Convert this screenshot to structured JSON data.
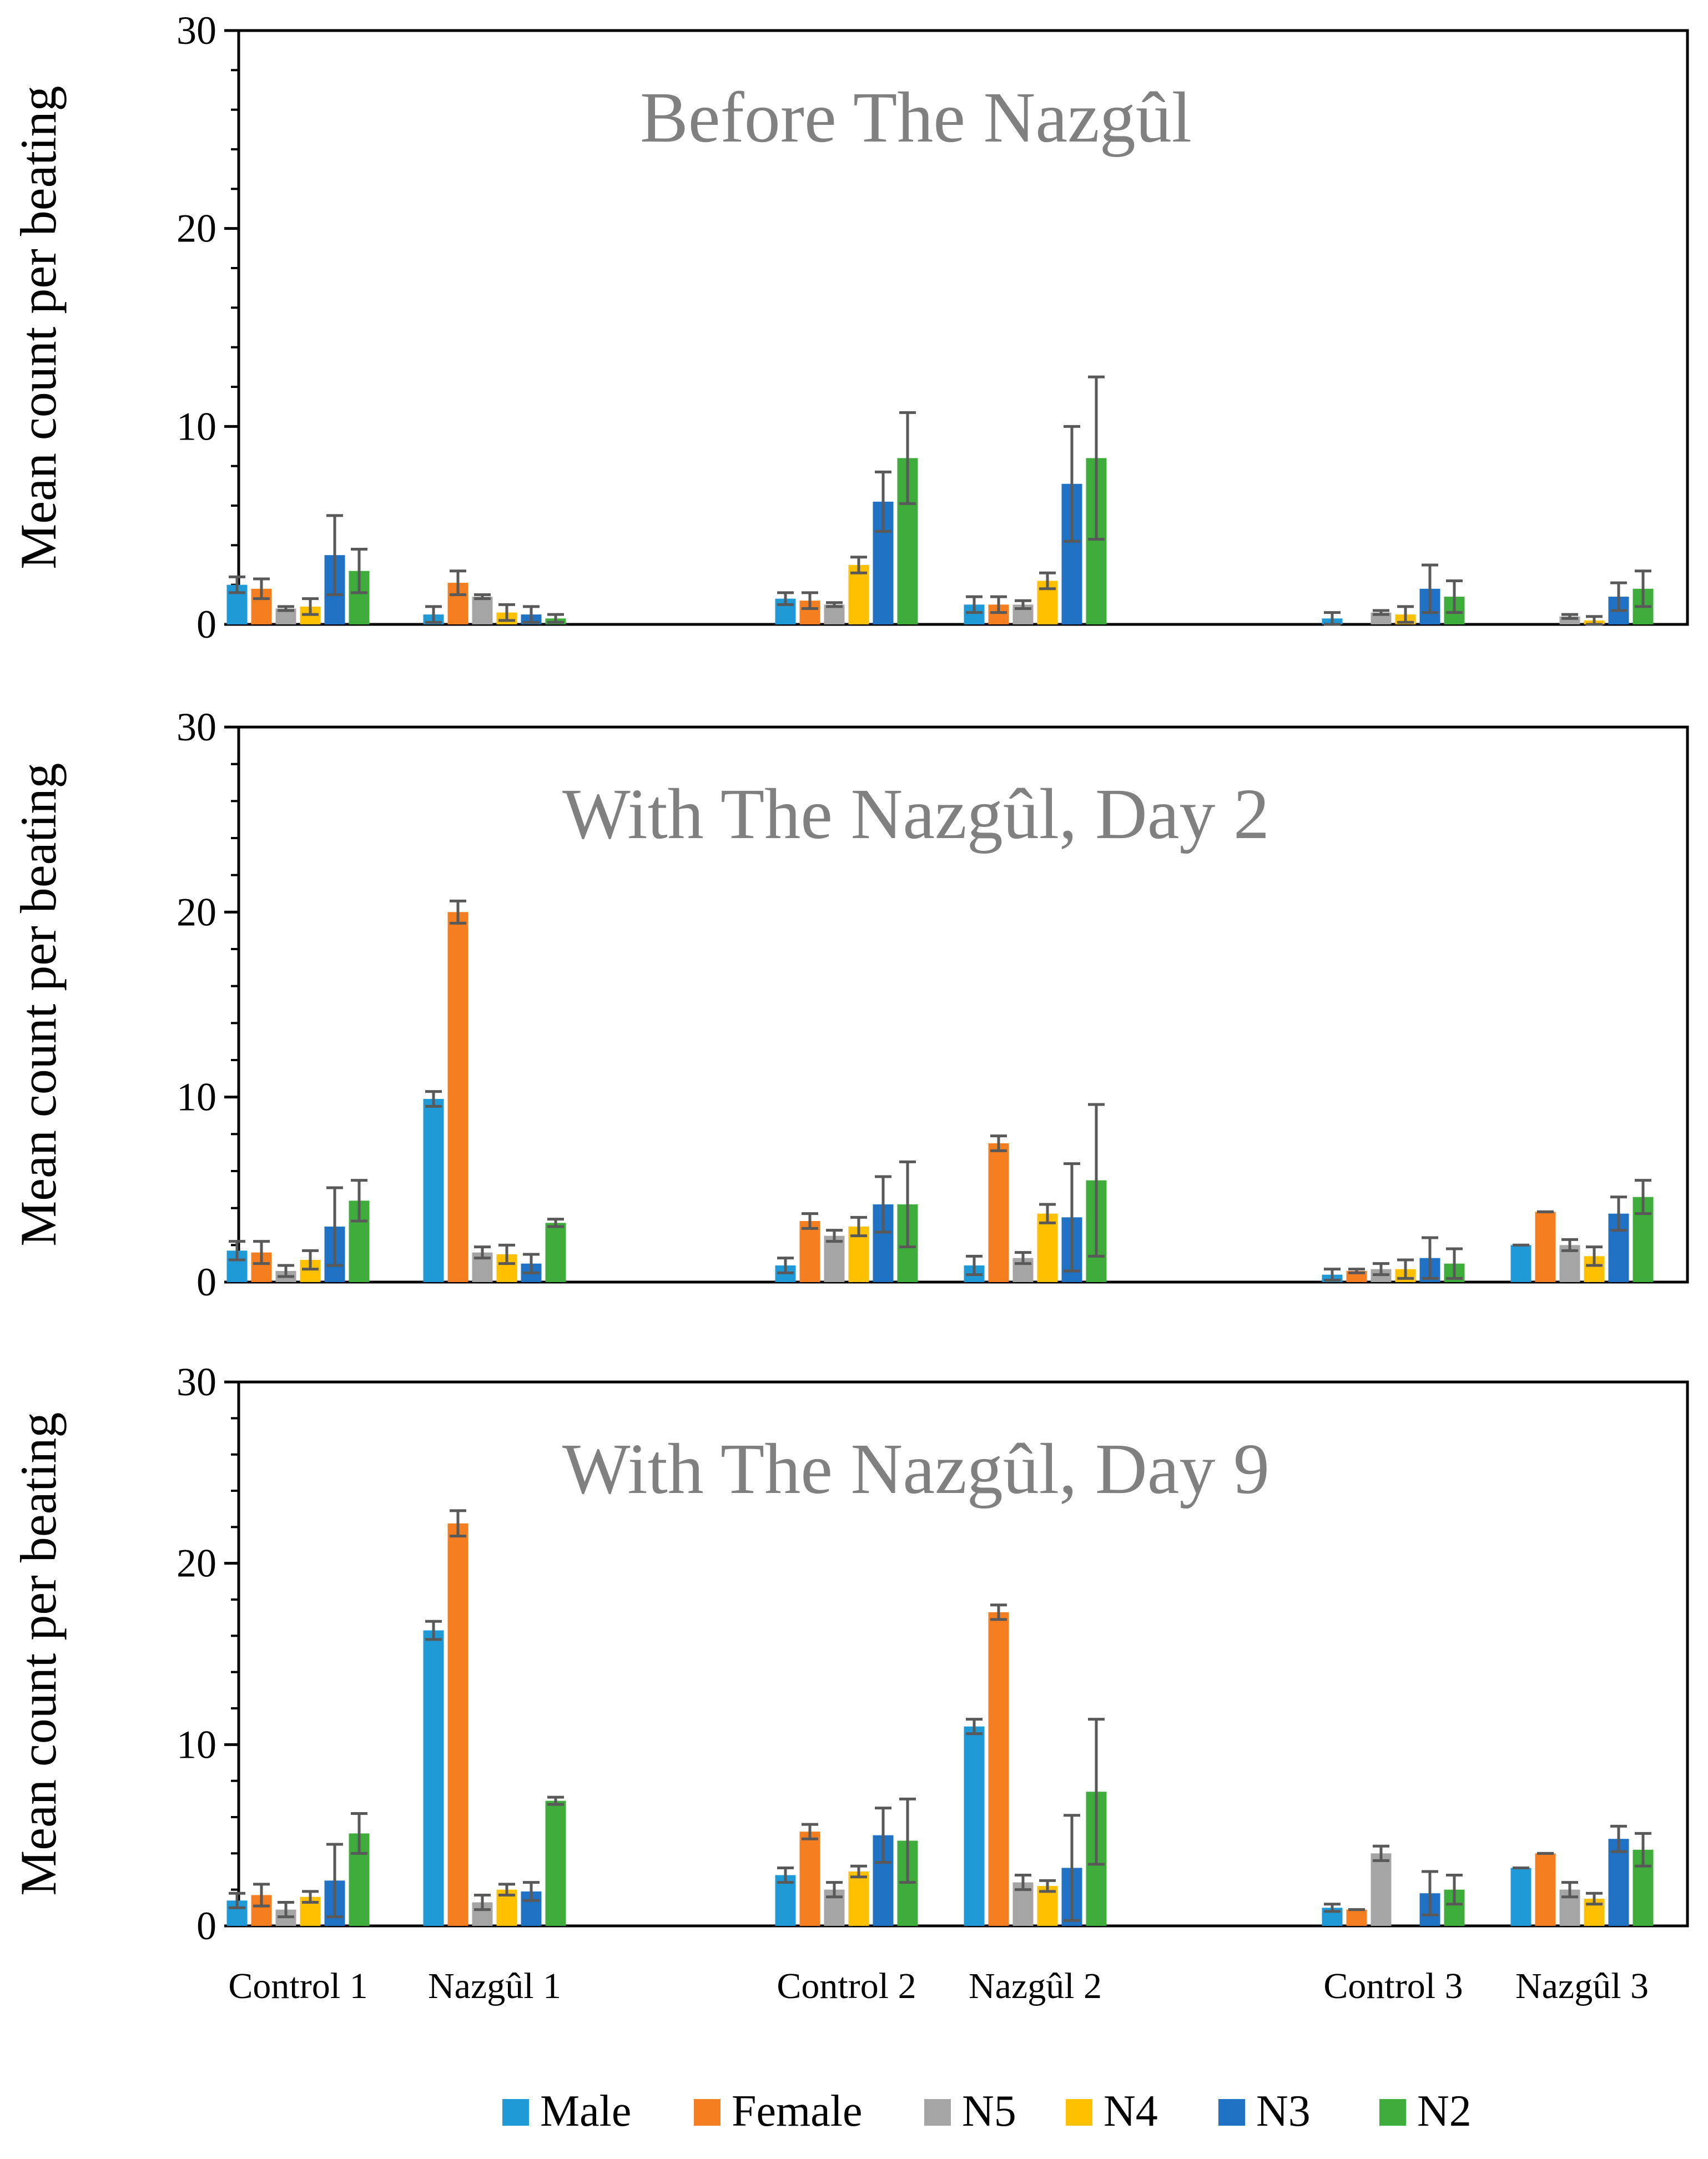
{
  "categories": [
    "Control 1",
    "Nazgûl 1",
    "Control 2",
    "Nazgûl 2",
    "Control 3",
    "Nazgûl 3"
  ],
  "legend": [
    {
      "name": "Male",
      "color": "#1f9ad6"
    },
    {
      "name": "Female",
      "color": "#f57f20"
    },
    {
      "name": "N5",
      "color": "#a5a5a5"
    },
    {
      "name": "N4",
      "color": "#ffc000"
    },
    {
      "name": "N3",
      "color": "#1f72c4"
    },
    {
      "name": "N2",
      "color": "#3fad3b"
    }
  ],
  "chart_data": [
    {
      "type": "bar",
      "title": "Before The Nazgûl",
      "ylabel": "Mean count per  beating",
      "ylim": [
        0,
        30
      ],
      "yticks": [
        0,
        10,
        20,
        30
      ],
      "categories": [
        "Control 1",
        "Nazgûl 1",
        "Control 2",
        "Nazgûl 2",
        "Control 3",
        "Nazgûl 3"
      ],
      "series": [
        {
          "name": "Male",
          "values": [
            2.0,
            0.5,
            1.3,
            1.0,
            0.3,
            0.0
          ],
          "errors": [
            0.4,
            0.4,
            0.3,
            0.4,
            0.3,
            0.0
          ]
        },
        {
          "name": "Female",
          "values": [
            1.8,
            2.1,
            1.2,
            1.0,
            0.0,
            0.0
          ],
          "errors": [
            0.5,
            0.6,
            0.4,
            0.4,
            0.0,
            0.0
          ]
        },
        {
          "name": "N5",
          "values": [
            0.8,
            1.4,
            1.0,
            1.0,
            0.6,
            0.4
          ],
          "errors": [
            0.1,
            0.1,
            0.1,
            0.2,
            0.1,
            0.1
          ]
        },
        {
          "name": "N4",
          "values": [
            0.9,
            0.6,
            3.0,
            2.2,
            0.5,
            0.2
          ],
          "errors": [
            0.4,
            0.4,
            0.4,
            0.4,
            0.4,
            0.2
          ]
        },
        {
          "name": "N3",
          "values": [
            3.5,
            0.5,
            6.2,
            7.1,
            1.8,
            1.4
          ],
          "errors": [
            2.0,
            0.4,
            1.5,
            2.9,
            1.2,
            0.7
          ]
        },
        {
          "name": "N2",
          "values": [
            2.7,
            0.3,
            8.4,
            8.4,
            1.4,
            1.8
          ],
          "errors": [
            1.1,
            0.2,
            2.3,
            4.1,
            0.8,
            0.9
          ]
        }
      ]
    },
    {
      "type": "bar",
      "title": "With The Nazgûl, Day 2",
      "ylabel": "Mean count per  beating",
      "ylim": [
        0,
        30
      ],
      "yticks": [
        0,
        10,
        20,
        30
      ],
      "categories": [
        "Control 1",
        "Nazgûl 1",
        "Control 2",
        "Nazgûl 2",
        "Control 3",
        "Nazgûl 3"
      ],
      "series": [
        {
          "name": "Male",
          "values": [
            1.7,
            9.9,
            0.9,
            0.9,
            0.4,
            2.0
          ],
          "errors": [
            0.5,
            0.4,
            0.4,
            0.5,
            0.3,
            0.0
          ]
        },
        {
          "name": "Female",
          "values": [
            1.6,
            20.0,
            3.3,
            7.5,
            0.6,
            3.8
          ],
          "errors": [
            0.6,
            0.6,
            0.4,
            0.4,
            0.1,
            0.0
          ]
        },
        {
          "name": "N5",
          "values": [
            0.6,
            1.6,
            2.5,
            1.3,
            0.7,
            2.0
          ],
          "errors": [
            0.3,
            0.3,
            0.3,
            0.3,
            0.3,
            0.3
          ]
        },
        {
          "name": "N4",
          "values": [
            1.2,
            1.5,
            3.0,
            3.7,
            0.7,
            1.4
          ],
          "errors": [
            0.5,
            0.5,
            0.5,
            0.5,
            0.5,
            0.5
          ]
        },
        {
          "name": "N3",
          "values": [
            3.0,
            1.0,
            4.2,
            3.5,
            1.3,
            3.7
          ],
          "errors": [
            2.1,
            0.5,
            1.5,
            2.9,
            1.1,
            0.9
          ]
        },
        {
          "name": "N2",
          "values": [
            4.4,
            3.2,
            4.2,
            5.5,
            1.0,
            4.6
          ],
          "errors": [
            1.1,
            0.2,
            2.3,
            4.1,
            0.8,
            0.9
          ]
        }
      ]
    },
    {
      "type": "bar",
      "title": "With The Nazgûl, Day 9",
      "ylabel": "Mean count per  beating",
      "ylim": [
        0,
        30
      ],
      "yticks": [
        0,
        10,
        20,
        30
      ],
      "categories": [
        "Control 1",
        "Nazgûl 1",
        "Control 2",
        "Nazgûl 2",
        "Control 3",
        "Nazgûl 3"
      ],
      "series": [
        {
          "name": "Male",
          "values": [
            1.4,
            16.3,
            2.8,
            11.0,
            1.0,
            3.2
          ],
          "errors": [
            0.4,
            0.5,
            0.4,
            0.4,
            0.2,
            0.0
          ]
        },
        {
          "name": "Female",
          "values": [
            1.7,
            22.2,
            5.2,
            17.3,
            0.9,
            4.0
          ],
          "errors": [
            0.6,
            0.7,
            0.4,
            0.4,
            0.0,
            0.0
          ]
        },
        {
          "name": "N5",
          "values": [
            0.9,
            1.3,
            2.0,
            2.4,
            4.0,
            2.0
          ],
          "errors": [
            0.4,
            0.4,
            0.4,
            0.4,
            0.4,
            0.4
          ]
        },
        {
          "name": "N4",
          "values": [
            1.6,
            2.0,
            3.0,
            2.2,
            0.0,
            1.5
          ],
          "errors": [
            0.3,
            0.3,
            0.3,
            0.3,
            0.0,
            0.3
          ]
        },
        {
          "name": "N3",
          "values": [
            2.5,
            1.9,
            5.0,
            3.2,
            1.8,
            4.8
          ],
          "errors": [
            2.0,
            0.5,
            1.5,
            2.9,
            1.2,
            0.7
          ]
        },
        {
          "name": "N2",
          "values": [
            5.1,
            6.9,
            4.7,
            7.4,
            2.0,
            4.2
          ],
          "errors": [
            1.1,
            0.2,
            2.3,
            4.0,
            0.8,
            0.9
          ]
        }
      ]
    }
  ]
}
